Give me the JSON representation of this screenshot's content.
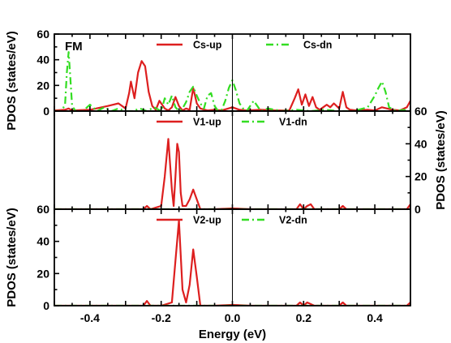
{
  "chart_data": {
    "type": "line",
    "xlabel": "Energy (eV)",
    "xlim": [
      -0.5,
      0.5
    ],
    "xticks": [
      "-0.4",
      "-0.2",
      "0.0",
      "0.2",
      "0.4"
    ],
    "fermi_level": 0.0,
    "colors": {
      "up": "#dd1f1f",
      "dn": "#33dd22"
    },
    "panels": [
      {
        "id": "cs",
        "label": "FM",
        "ylabel": "PDOS (states/eV)",
        "ylabel_side": "left",
        "ylim": [
          0,
          60
        ],
        "yticks": [
          "0",
          "20",
          "40",
          "60"
        ],
        "series": [
          {
            "name": "Cs-up",
            "style": "solid",
            "x": [
              -0.5,
              -0.47,
              -0.46,
              -0.45,
              -0.4,
              -0.35,
              -0.32,
              -0.3,
              -0.29,
              -0.285,
              -0.275,
              -0.265,
              -0.255,
              -0.245,
              -0.235,
              -0.225,
              -0.215,
              -0.205,
              -0.19,
              -0.18,
              -0.17,
              -0.16,
              -0.15,
              -0.14,
              -0.13,
              -0.12,
              -0.11,
              -0.1,
              -0.09,
              -0.07,
              -0.05,
              -0.03,
              0.0,
              0.02,
              0.04,
              0.08,
              0.12,
              0.16,
              0.175,
              0.185,
              0.195,
              0.205,
              0.215,
              0.225,
              0.235,
              0.245,
              0.255,
              0.265,
              0.275,
              0.285,
              0.3,
              0.31,
              0.32,
              0.33,
              0.35,
              0.38,
              0.4,
              0.42,
              0.45,
              0.47,
              0.49,
              0.5
            ],
            "y": [
              0.5,
              1,
              2,
              0.5,
              1,
              4,
              6,
              2,
              14,
              23,
              10,
              30,
              39,
              35,
              15,
              4,
              1,
              8,
              2,
              0.5,
              3,
              11,
              4,
              0.5,
              2,
              1,
              18,
              6,
              2,
              0.5,
              1,
              0.5,
              3,
              1,
              0.5,
              1,
              0.5,
              0.5,
              10,
              17,
              5,
              13,
              4,
              11,
              3,
              1,
              3,
              5,
              3,
              6,
              2,
              15,
              3,
              1,
              0.5,
              1,
              0.5,
              3,
              1,
              0.5,
              3,
              8
            ]
          },
          {
            "name": "Cs-dn",
            "style": "dashdot",
            "x": [
              -0.5,
              -0.48,
              -0.47,
              -0.465,
              -0.46,
              -0.455,
              -0.45,
              -0.44,
              -0.42,
              -0.4,
              -0.38,
              -0.36,
              -0.34,
              -0.32,
              -0.3,
              -0.28,
              -0.26,
              -0.24,
              -0.22,
              -0.2,
              -0.19,
              -0.18,
              -0.17,
              -0.16,
              -0.15,
              -0.14,
              -0.13,
              -0.12,
              -0.11,
              -0.1,
              -0.09,
              -0.08,
              -0.07,
              -0.06,
              -0.05,
              -0.04,
              -0.03,
              -0.02,
              -0.01,
              0.0,
              0.01,
              0.02,
              0.03,
              0.04,
              0.06,
              0.08,
              0.1,
              0.14,
              0.18,
              0.22,
              0.26,
              0.3,
              0.34,
              0.38,
              0.4,
              0.41,
              0.42,
              0.43,
              0.44,
              0.46,
              0.48,
              0.5
            ],
            "y": [
              0,
              0,
              5,
              30,
              46,
              25,
              4,
              0,
              0,
              5,
              0,
              3,
              0,
              2,
              0,
              0,
              2,
              0,
              3,
              0,
              10,
              5,
              12,
              3,
              0,
              2,
              7,
              15,
              19,
              12,
              6,
              2,
              12,
              14,
              4,
              0,
              1,
              8,
              18,
              24,
              16,
              6,
              2,
              0,
              8,
              0,
              2,
              0,
              1,
              0,
              1,
              0,
              0,
              3,
              12,
              18,
              23,
              15,
              3,
              0,
              1,
              0
            ],
            "dash": "9,4,2,4"
          }
        ]
      },
      {
        "id": "v1",
        "label": "",
        "ylabel": "PDOS (states/eV)",
        "ylabel_side": "right",
        "ylim": [
          0,
          60
        ],
        "yticks": [
          "0",
          "20",
          "40",
          "60"
        ],
        "series": [
          {
            "name": "V1-up",
            "style": "solid",
            "x": [
              -0.5,
              -0.3,
              -0.25,
              -0.24,
              -0.23,
              -0.2,
              -0.19,
              -0.18,
              -0.17,
              -0.165,
              -0.16,
              -0.155,
              -0.15,
              -0.145,
              -0.14,
              -0.13,
              -0.12,
              -0.11,
              -0.1,
              -0.09,
              -0.05,
              0.0,
              0.05,
              0.15,
              0.18,
              0.19,
              0.2,
              0.21,
              0.22,
              0.23,
              0.3,
              0.31,
              0.32,
              0.4,
              0.49,
              0.5
            ],
            "y": [
              0,
              0,
              0,
              2,
              0,
              2,
              20,
              43,
              12,
              2,
              20,
              40,
              35,
              10,
              2,
              2,
              6,
              12,
              6,
              0,
              0,
              0.5,
              0,
              0,
              0,
              3,
              0,
              2,
              3,
              0,
              0,
              2,
              0,
              0,
              0,
              3
            ]
          },
          {
            "name": "V1-dn",
            "style": "dashdot",
            "x": [
              -0.5,
              0.5
            ],
            "y": [
              0,
              0
            ],
            "dash": "9,4,2,4"
          }
        ]
      },
      {
        "id": "v2",
        "label": "",
        "ylabel": "PDOS (states/eV)",
        "ylabel_side": "left",
        "ylim": [
          0,
          60
        ],
        "yticks": [
          "0",
          "20",
          "40",
          "60"
        ],
        "series": [
          {
            "name": "V2-up",
            "style": "solid",
            "x": [
              -0.5,
              -0.3,
              -0.25,
              -0.24,
              -0.23,
              -0.2,
              -0.17,
              -0.16,
              -0.15,
              -0.14,
              -0.13,
              -0.12,
              -0.11,
              -0.1,
              -0.09,
              -0.05,
              0.0,
              0.05,
              0.15,
              0.18,
              0.19,
              0.2,
              0.21,
              0.22,
              0.23,
              0.3,
              0.31,
              0.32,
              0.4,
              0.49,
              0.5
            ],
            "y": [
              0,
              0,
              0,
              3,
              0,
              0,
              2,
              28,
              53,
              10,
              2,
              13,
              35,
              18,
              0,
              0,
              0.5,
              0,
              0,
              0,
              2,
              0,
              2,
              1,
              0,
              0,
              2,
              0,
              0,
              0,
              2
            ]
          },
          {
            "name": "V2-dn",
            "style": "dashdot",
            "x": [
              -0.5,
              0.5
            ],
            "y": [
              0,
              0
            ],
            "dash": "9,4,2,4"
          }
        ]
      }
    ]
  }
}
